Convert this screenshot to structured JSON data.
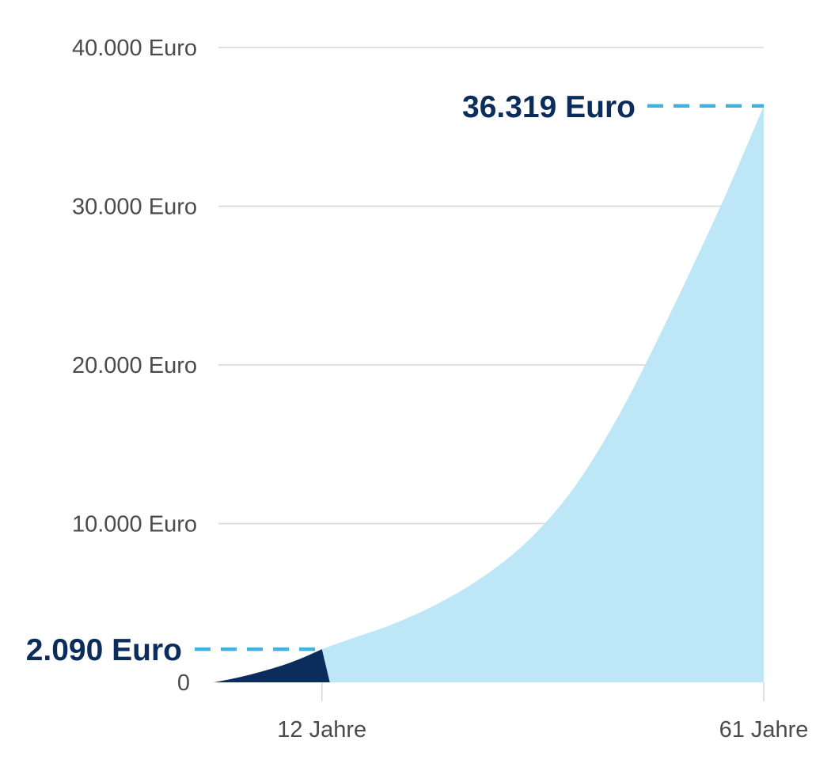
{
  "chart_data": {
    "type": "area",
    "title": "",
    "xlabel": "",
    "ylabel": "",
    "y_unit": "Euro",
    "ylim": [
      0,
      40000
    ],
    "xlim": [
      0,
      61
    ],
    "y_ticks": [
      {
        "value": 0,
        "label": "0"
      },
      {
        "value": 10000,
        "label": "10.000 Euro"
      },
      {
        "value": 20000,
        "label": "20.000 Euro"
      },
      {
        "value": 30000,
        "label": "30.000 Euro"
      },
      {
        "value": 40000,
        "label": "40.000 Euro"
      }
    ],
    "x_ticks": [
      {
        "value": 12,
        "label": "12 Jahre"
      },
      {
        "value": 61,
        "label": "61 Jahre"
      }
    ],
    "grid": true,
    "series": [
      {
        "color": "#0b2d5c",
        "x": [
          0,
          2,
          4,
          6,
          8,
          10,
          12
        ],
        "y": [
          0,
          220,
          480,
          790,
          1140,
          1580,
          2090
        ]
      },
      {
        "color": "#bde6f7",
        "x": [
          12,
          15,
          20,
          25,
          30,
          35,
          40,
          45,
          50,
          55,
          58,
          61
        ],
        "y": [
          2090,
          2700,
          3700,
          5000,
          6700,
          9000,
          12300,
          16900,
          22500,
          28500,
          32300,
          36319
        ]
      }
    ],
    "annotations": [
      {
        "x": 12,
        "y": 2090,
        "label": "2.090 Euro",
        "color": "#0b2d5c",
        "line_color": "#3fb3df"
      },
      {
        "x": 61,
        "y": 36319,
        "label": "36.319 Euro",
        "color": "#0b2d5c",
        "line_color": "#3fb3df"
      }
    ],
    "colors": {
      "grid": "#d6d6d9",
      "tick_text": "#4a4a4f"
    }
  }
}
